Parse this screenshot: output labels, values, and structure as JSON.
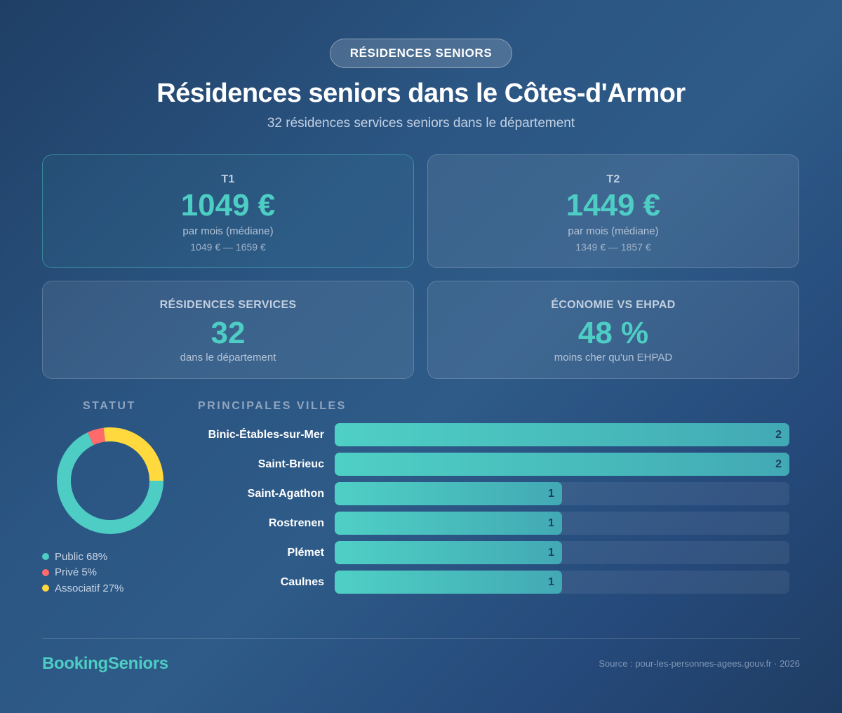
{
  "header": {
    "badge": "RÉSIDENCES SENIORS",
    "title": "Résidences seniors dans le Côtes-d'Armor",
    "subtitle": "32 résidences services seniors dans le département"
  },
  "cards": {
    "t1": {
      "label": "T1",
      "value": "1049 €",
      "sub": "par mois (médiane)",
      "range": "1049 € — 1659 €"
    },
    "t2": {
      "label": "T2",
      "value": "1449 €",
      "sub": "par mois (médiane)",
      "range": "1349 € — 1857 €"
    },
    "residences": {
      "label": "RÉSIDENCES SERVICES",
      "value": "32",
      "sub": "dans le département"
    },
    "economie": {
      "label": "ÉCONOMIE VS EHPAD",
      "value": "48 %",
      "sub": "moins cher qu'un EHPAD"
    }
  },
  "statut": {
    "title": "STATUT",
    "legend": [
      {
        "label": "Public 68%",
        "color": "#4ecdc4"
      },
      {
        "label": "Privé 5%",
        "color": "#ff6b6b"
      },
      {
        "label": "Associatif 27%",
        "color": "#ffd93d"
      }
    ]
  },
  "villes": {
    "title": "PRINCIPALES VILLES",
    "rows": [
      {
        "label": "Binic-Étables-sur-Mer",
        "value": "2"
      },
      {
        "label": "Saint-Brieuc",
        "value": "2"
      },
      {
        "label": "Saint-Agathon",
        "value": "1"
      },
      {
        "label": "Rostrenen",
        "value": "1"
      },
      {
        "label": "Plémet",
        "value": "1"
      },
      {
        "label": "Caulnes",
        "value": "1"
      }
    ]
  },
  "footer": {
    "brand": "BookingSeniors",
    "source": "Source : pour-les-personnes-agees.gouv.fr · 2026"
  },
  "colors": {
    "accent": "#4ecdc4",
    "public": "#4ecdc4",
    "prive": "#ff6b6b",
    "associatif": "#ffd93d"
  },
  "chart_data": [
    {
      "type": "pie",
      "title": "STATUT",
      "donut": true,
      "categories": [
        "Public",
        "Privé",
        "Associatif"
      ],
      "values": [
        68,
        5,
        27
      ],
      "colors": [
        "#4ecdc4",
        "#ff6b6b",
        "#ffd93d"
      ],
      "legend_position": "bottom"
    },
    {
      "type": "bar",
      "orientation": "horizontal",
      "title": "PRINCIPALES VILLES",
      "categories": [
        "Binic-Étables-sur-Mer",
        "Saint-Brieuc",
        "Saint-Agathon",
        "Rostrenen",
        "Plémet",
        "Caulnes"
      ],
      "values": [
        2,
        2,
        1,
        1,
        1,
        1
      ],
      "xlim": [
        0,
        2
      ],
      "xlabel": "",
      "ylabel": "",
      "grid": false,
      "data_labels": true
    }
  ]
}
